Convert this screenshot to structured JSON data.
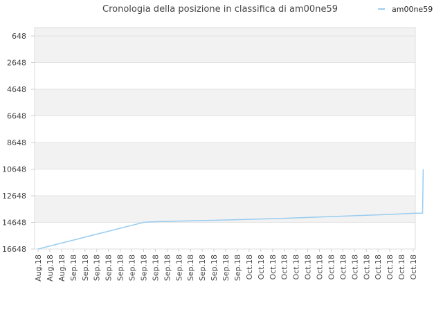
{
  "chart_data": {
    "type": "line",
    "title": "Cronologia della posizione in classifica di am00ne59",
    "legend_position": "top-right",
    "y_inverted": true,
    "ylim": [
      648,
      16648
    ],
    "y_ticks": [
      "648",
      "2648",
      "4648",
      "6648",
      "8648",
      "10648",
      "12648",
      "14648",
      "16648"
    ],
    "x_labels": [
      "Aug.18",
      "Aug.18",
      "Aug.18",
      "Sep.18",
      "Sep.18",
      "Sep.18",
      "Sep.18",
      "Sep.18",
      "Sep.18",
      "Sep.18",
      "Sep.18",
      "Sep.18",
      "Sep.18",
      "Sep.18",
      "Sep.18",
      "Sep.18",
      "Sep.18",
      "Sep.18",
      "Oct.18",
      "Oct.18",
      "Oct.18",
      "Oct.18",
      "Oct.18",
      "Oct.18",
      "Oct.18",
      "Oct.18",
      "Oct.18",
      "Oct.18",
      "Oct.18",
      "Oct.18",
      "Oct.18",
      "Oct.18",
      "Oct.18"
    ],
    "series": [
      {
        "name": "am00ne59",
        "color": "#99ccf0",
        "points": [
          [
            0,
            16648
          ],
          [
            9,
            14648
          ],
          [
            10,
            14598
          ],
          [
            12,
            14548
          ],
          [
            15,
            14490
          ],
          [
            18,
            14420
          ],
          [
            21,
            14340
          ],
          [
            24,
            14250
          ],
          [
            27,
            14150
          ],
          [
            30,
            14050
          ],
          [
            32,
            13970
          ],
          [
            32.8,
            13950
          ],
          [
            32.85,
            10648
          ]
        ]
      }
    ],
    "grid_bands": true
  }
}
